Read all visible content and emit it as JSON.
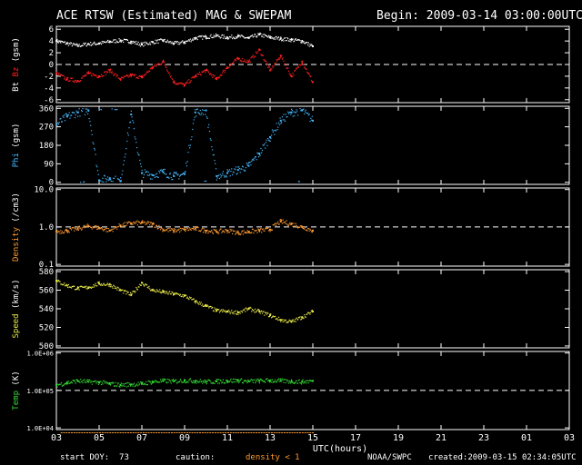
{
  "header": {
    "title": "ACE RTSW (Estimated) MAG & SWEPAM",
    "begin": "Begin: 2009-03-14 03:00:00UTC"
  },
  "footer": {
    "start_doy": "start DOY:  73",
    "caution": "caution:",
    "density_note": "density < 1",
    "source": "NOAA/SWPC",
    "created": "created:2009-03-15 02:34:05UTC"
  },
  "colors": {
    "bt": "#ffffff",
    "bz": "#ff2020",
    "phi": "#44b8ff",
    "density": "#ff9a30",
    "speed": "#e8e84a",
    "temp": "#33dd33",
    "caution": "#ff9a30"
  },
  "chart_data": {
    "type": "scatter",
    "x_axis": {
      "label": "UTC(hours)",
      "ticks": [
        "03",
        "05",
        "07",
        "09",
        "11",
        "13",
        "15",
        "17",
        "19",
        "21",
        "23",
        "01",
        "03"
      ],
      "range": [
        3,
        27
      ],
      "data_end": 15
    },
    "panels": [
      {
        "id": "mag",
        "ylabel_parts": [
          "Bt",
          "Bz",
          "(gsm)"
        ],
        "yticks": [
          "6",
          "4",
          "2",
          "0",
          "-2",
          "-4",
          "-6"
        ],
        "ylim": [
          -6.5,
          6.5
        ],
        "ref_line": 0,
        "series": [
          {
            "name": "Bt",
            "color_key": "bt",
            "x": [
              3.0,
              3.5,
              4.0,
              4.5,
              5.0,
              5.5,
              6.0,
              6.5,
              7.0,
              7.5,
              8.0,
              8.5,
              9.0,
              9.5,
              10.0,
              10.5,
              11.0,
              11.5,
              12.0,
              12.5,
              13.0,
              13.5,
              14.0,
              14.5,
              15.0
            ],
            "y": [
              4.0,
              3.6,
              3.2,
              3.5,
              3.6,
              3.9,
              4.1,
              3.9,
              3.4,
              3.8,
              4.1,
              3.6,
              3.8,
              4.5,
              4.7,
              4.9,
              4.6,
              4.8,
              4.5,
              5.1,
              4.6,
              4.4,
              4.2,
              4.0,
              3.1
            ]
          },
          {
            "name": "Bz",
            "color_key": "bz",
            "x": [
              3.0,
              3.5,
              4.0,
              4.5,
              5.0,
              5.5,
              6.0,
              6.5,
              7.0,
              7.5,
              8.0,
              8.5,
              9.0,
              9.5,
              10.0,
              10.5,
              11.0,
              11.5,
              12.0,
              12.5,
              13.0,
              13.5,
              14.0,
              14.5,
              15.0
            ],
            "y": [
              -1.5,
              -2.5,
              -2.8,
              -1.5,
              -2.0,
              -1.0,
              -2.5,
              -1.8,
              -2.2,
              -0.5,
              0.5,
              -3.0,
              -3.5,
              -2.0,
              -1.0,
              -2.5,
              -0.5,
              1.0,
              0.5,
              2.5,
              -1.0,
              1.5,
              -2.0,
              0.5,
              -3.0
            ]
          }
        ]
      },
      {
        "id": "phi",
        "ylabel_parts": [
          "Phi",
          "(gsm)"
        ],
        "yticks": [
          "360",
          "270",
          "180",
          "90",
          "0"
        ],
        "ylim": [
          -10,
          370
        ],
        "series": [
          {
            "name": "Phi",
            "color_key": "phi",
            "x": [
              3.0,
              3.5,
              4.0,
              4.5,
              5.0,
              5.5,
              6.0,
              6.5,
              7.0,
              7.5,
              8.0,
              8.5,
              9.0,
              9.5,
              10.0,
              10.5,
              11.0,
              11.5,
              12.0,
              12.5,
              13.0,
              13.5,
              14.0,
              14.5,
              15.0
            ],
            "y": [
              280,
              320,
              340,
              350,
              10,
              20,
              5,
              330,
              45,
              35,
              50,
              30,
              40,
              340,
              350,
              30,
              45,
              60,
              80,
              140,
              220,
              300,
              340,
              350,
              300
            ]
          }
        ]
      },
      {
        "id": "density",
        "ylabel_parts": [
          "Density",
          "(/cm3)"
        ],
        "yticks": [
          "10.0",
          "1.0",
          "0.1"
        ],
        "ylim": [
          0.09,
          11
        ],
        "log": true,
        "ref_line": 1.0,
        "series": [
          {
            "name": "Density",
            "color_key": "density",
            "x": [
              3.0,
              3.5,
              4.0,
              4.5,
              5.0,
              5.5,
              6.0,
              6.5,
              7.0,
              7.5,
              8.0,
              8.5,
              9.0,
              9.5,
              10.0,
              10.5,
              11.0,
              11.5,
              12.0,
              12.5,
              13.0,
              13.5,
              14.0,
              14.5,
              15.0
            ],
            "y": [
              0.75,
              0.8,
              0.9,
              1.05,
              0.95,
              0.8,
              1.1,
              1.25,
              1.3,
              1.2,
              0.85,
              0.8,
              0.85,
              0.9,
              0.8,
              0.75,
              0.8,
              0.7,
              0.75,
              0.8,
              0.85,
              1.4,
              1.2,
              1.0,
              0.8
            ]
          }
        ]
      },
      {
        "id": "speed",
        "ylabel_parts": [
          "Speed",
          "(km/s)"
        ],
        "yticks": [
          "580",
          "560",
          "540",
          "520",
          "500"
        ],
        "ylim": [
          498,
          582
        ],
        "series": [
          {
            "name": "Speed",
            "color_key": "speed",
            "x": [
              3.0,
              3.5,
              4.0,
              4.5,
              5.0,
              5.5,
              6.0,
              6.5,
              7.0,
              7.5,
              8.0,
              8.5,
              9.0,
              9.5,
              10.0,
              10.5,
              11.0,
              11.5,
              12.0,
              12.5,
              13.0,
              13.5,
              14.0,
              14.5,
              15.0
            ],
            "y": [
              570,
              565,
              562,
              563,
              567,
              566,
              560,
              555,
              568,
              560,
              558,
              556,
              554,
              548,
              543,
              538,
              537,
              536,
              540,
              537,
              533,
              528,
              526,
              531,
              537
            ]
          }
        ]
      },
      {
        "id": "temp",
        "ylabel_parts": [
          "Temp",
          "(K)"
        ],
        "yticks": [
          "1.0E+06",
          "1.0E+05",
          "1.0E+04"
        ],
        "ylim": [
          9000,
          1100000
        ],
        "log": true,
        "ref_line": 100000,
        "series": [
          {
            "name": "Temp",
            "color_key": "temp",
            "x": [
              3.0,
              3.5,
              4.0,
              4.5,
              5.0,
              5.5,
              6.0,
              6.5,
              7.0,
              7.5,
              8.0,
              8.5,
              9.0,
              9.5,
              10.0,
              10.5,
              11.0,
              11.5,
              12.0,
              12.5,
              13.0,
              13.5,
              14.0,
              14.5,
              15.0
            ],
            "y": [
              140000,
              160000,
              180000,
              170000,
              165000,
              150000,
              140000,
              145000,
              150000,
              170000,
              180000,
              175000,
              185000,
              180000,
              170000,
              175000,
              180000,
              185000,
              175000,
              180000,
              185000,
              180000,
              175000,
              170000,
              180000
            ]
          }
        ]
      }
    ]
  }
}
